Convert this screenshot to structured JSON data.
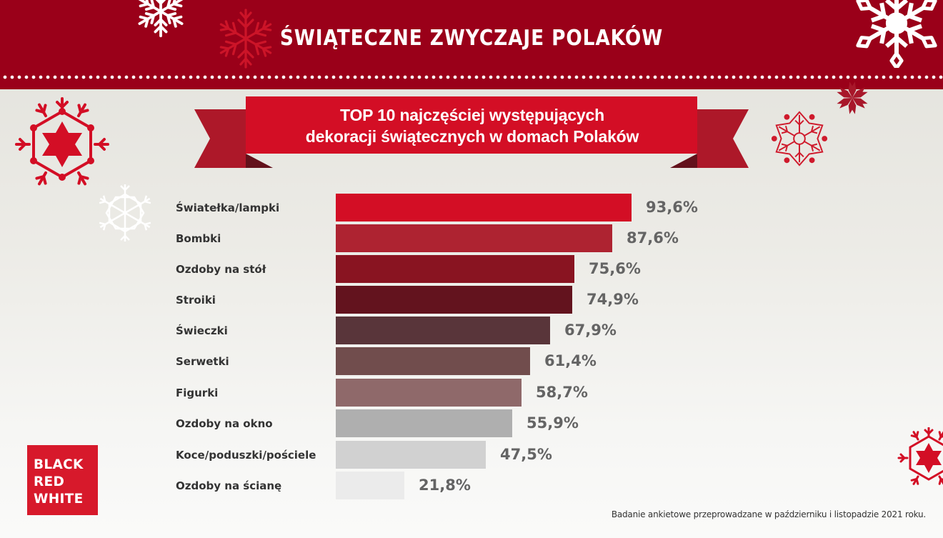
{
  "header": {
    "title": "ŚWIĄTECZNE ZWYCZAJE POLAKÓW",
    "background_color": "#9a0019"
  },
  "ribbon": {
    "line1": "TOP 10 najczęściej występujących",
    "line2": "dekoracji świątecznych w domach Polaków",
    "color": "#d30e25"
  },
  "chart_data": {
    "type": "bar",
    "orientation": "horizontal",
    "title": "TOP 10 najczęściej występujących dekoracji świątecznych w domach Polaków",
    "xlabel": "",
    "ylabel": "",
    "xlim": [
      0,
      100
    ],
    "grid": false,
    "legend": "none",
    "categories": [
      "Światełka/lampki",
      "Bombki",
      "Ozdoby na stół",
      "Stroiki",
      "Świeczki",
      "Serwetki",
      "Figurki",
      "Ozdoby na okno",
      "Koce/poduszki/pościele",
      "Ozdoby na ścianę"
    ],
    "values": [
      93.6,
      87.6,
      75.6,
      74.9,
      67.9,
      61.4,
      58.7,
      55.9,
      47.5,
      21.8
    ],
    "value_labels": [
      "93,6%",
      "87,6%",
      "75,6%",
      "74,9%",
      "67,9%",
      "61,4%",
      "58,7%",
      "55,9%",
      "47,5%",
      "21,8%"
    ],
    "colors": [
      "#d30e25",
      "#ae2331",
      "#891421",
      "#63131e",
      "#59353a",
      "#714d4d",
      "#8f696a",
      "#afafaf",
      "#d1d1d1",
      "#ebebeb"
    ]
  },
  "logo": {
    "lines": [
      "BLACK",
      "RED",
      "WHITE"
    ],
    "color": "#d7192b"
  },
  "footnote": "Badanie ankietowe przeprowadzane w październiku i listopadzie 2021 roku.",
  "decorations": [
    "snowflake-icon",
    "star-snowflake-icon",
    "ornate-snowflake-icon"
  ]
}
